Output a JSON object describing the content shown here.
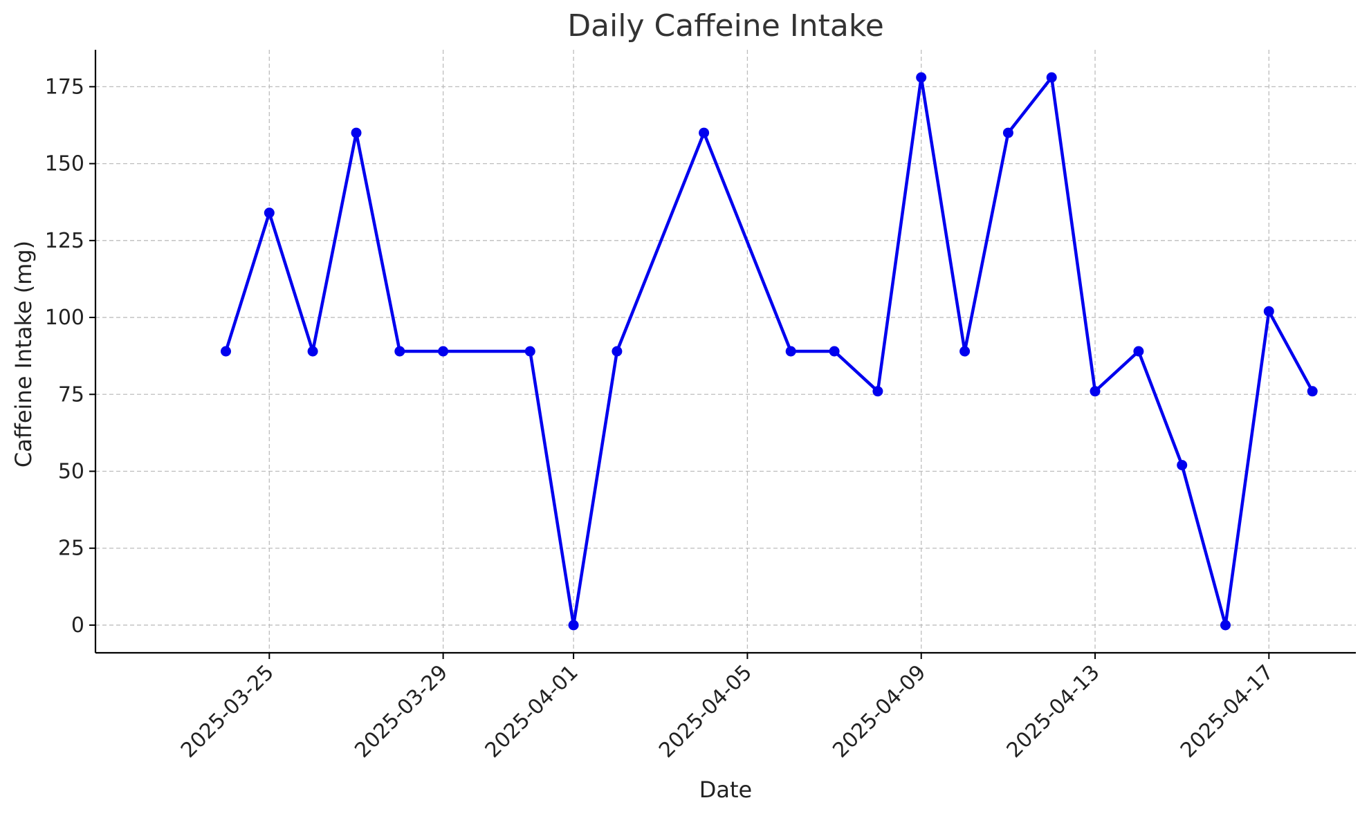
{
  "chart_data": {
    "type": "line",
    "title": "Daily Caffeine Intake",
    "xlabel": "Date",
    "ylabel": "Caffeine Intake (mg)",
    "x_ticks": [
      "2025-03-25",
      "2025-03-29",
      "2025-04-01",
      "2025-04-05",
      "2025-04-09",
      "2025-04-13",
      "2025-04-17"
    ],
    "y_ticks": [
      0,
      25,
      50,
      75,
      100,
      125,
      150,
      175
    ],
    "xlim": [
      "2025-03-21",
      "2025-04-19"
    ],
    "ylim": [
      -9,
      187
    ],
    "grid": true,
    "colors": {
      "line": "#0000ee"
    },
    "series": [
      {
        "x": [
          "2025-03-24",
          "2025-03-25",
          "2025-03-26",
          "2025-03-27",
          "2025-03-28",
          "2025-03-29",
          "2025-03-31",
          "2025-04-01",
          "2025-04-02",
          "2025-04-04",
          "2025-04-06",
          "2025-04-07",
          "2025-04-08",
          "2025-04-09",
          "2025-04-10",
          "2025-04-11",
          "2025-04-12",
          "2025-04-13",
          "2025-04-14",
          "2025-04-15",
          "2025-04-16",
          "2025-04-17",
          "2025-04-18"
        ],
        "values": [
          89,
          134,
          89,
          160,
          89,
          89,
          89,
          0,
          89,
          160,
          89,
          89,
          76,
          178,
          89,
          160,
          178,
          76,
          89,
          52,
          0,
          102,
          76
        ]
      }
    ]
  }
}
